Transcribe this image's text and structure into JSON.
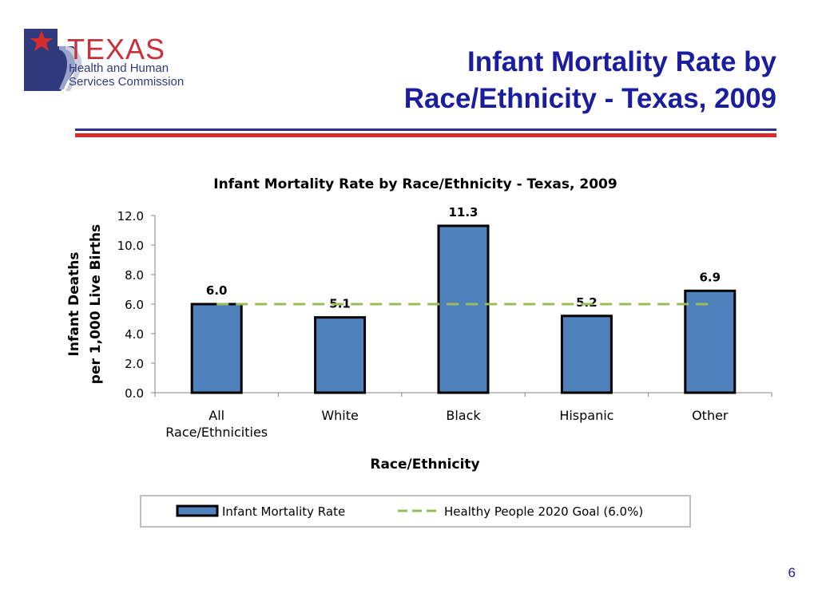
{
  "logo": {
    "word": "TEXAS",
    "line1": "Health and Human",
    "line2": "Services Commission"
  },
  "slide": {
    "title_line1": "Infant Mortality Rate by",
    "title_line2": "Race/Ethnicity - Texas, 2009",
    "page_number": "6"
  },
  "colors": {
    "title": "#1a1e9e",
    "rule_blue": "#2b2f8e",
    "rule_red": "#d62c2c",
    "bar_fill": "#4f81bd",
    "goal_line": "#9bbb59"
  },
  "chart_data": {
    "type": "bar",
    "title": "Infant Mortality Rate by Race/Ethnicity - Texas, 2009",
    "xlabel": "Race/Ethnicity",
    "ylabel_line1": "Infant Deaths",
    "ylabel_line2": "per 1,000 Live Births",
    "categories": [
      [
        "All",
        "Race/Ethnicities"
      ],
      [
        "White"
      ],
      [
        "Black"
      ],
      [
        "Hispanic"
      ],
      [
        "Other"
      ]
    ],
    "values": [
      6.0,
      5.1,
      11.3,
      5.2,
      6.9
    ],
    "value_labels": [
      "6.0",
      "5.1",
      "11.3",
      "5.2",
      "6.9"
    ],
    "ylim": [
      0,
      12
    ],
    "yticks": [
      "0.0",
      "2.0",
      "4.0",
      "6.0",
      "8.0",
      "10.0",
      "12.0"
    ],
    "grid": false,
    "goal": {
      "value": 6.0
    },
    "legend": {
      "placement": "bottom",
      "items": [
        "Infant Mortality Rate",
        "Healthy People 2020 Goal (6.0%)"
      ]
    }
  }
}
